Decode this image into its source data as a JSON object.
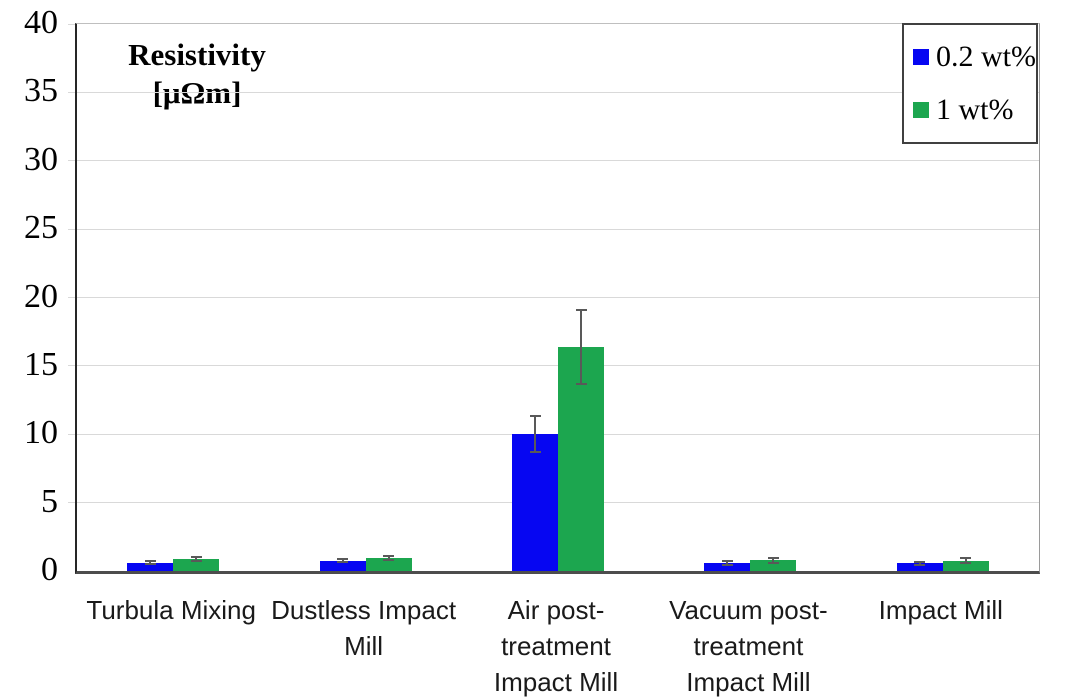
{
  "chart_data": {
    "type": "bar",
    "title_lines": [
      "Resistivity",
      "[μΩm]"
    ],
    "categories": [
      "Turbula Mixing",
      "Dustless Impact\nMill",
      "Air post-\ntreatment\nImpact Mill",
      "Vacuum post-\ntreatment\nImpact Mill",
      "Impact Mill"
    ],
    "series": [
      {
        "name": "0.2 wt%",
        "color": "#0606f2",
        "values": [
          0.6,
          0.75,
          10.0,
          0.6,
          0.55
        ],
        "errors": [
          0.12,
          0.1,
          1.3,
          0.15,
          0.1
        ]
      },
      {
        "name": "1 wt%",
        "color": "#1ca64f",
        "values": [
          0.9,
          0.95,
          16.4,
          0.8,
          0.75
        ],
        "errors": [
          0.15,
          0.12,
          2.7,
          0.18,
          0.2
        ]
      }
    ],
    "ylabel": "Resistivity [μΩm]",
    "xlabel": "",
    "ylim": [
      0,
      40
    ],
    "ytick_step": 5,
    "yticks": [
      0,
      5,
      10,
      15,
      20,
      25,
      30,
      35,
      40
    ],
    "grid": true,
    "legend_position": "top-right",
    "error_bars": true
  },
  "colors": {
    "gridline": "#d9d9d9",
    "axis_bottom": "#4d4d4d",
    "axis_left": "#262626",
    "error_bar": "#595959",
    "legend_border": "#404040",
    "background": "#ffffff"
  }
}
